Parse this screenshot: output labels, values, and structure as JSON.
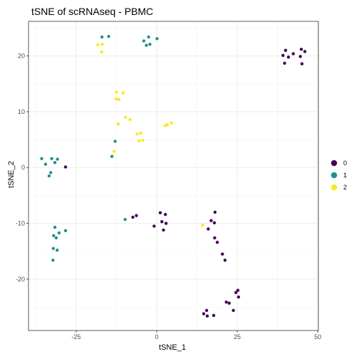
{
  "chart_data": {
    "type": "scatter",
    "title": "tSNE of scRNAseq - PBMC",
    "xlabel": "tSNE_1",
    "ylabel": "tSNE_2",
    "xlim": [
      -39.8,
      50.2
    ],
    "ylim": [
      -29.2,
      26.2
    ],
    "x_ticks": [
      -25,
      0,
      25,
      50
    ],
    "y_ticks": [
      -20,
      -10,
      0,
      10,
      20
    ],
    "x_tick_labels": [
      "-25",
      "0",
      "25",
      "50"
    ],
    "y_tick_labels": [
      "-20",
      "-10",
      "0",
      "10",
      "20"
    ],
    "grid": true,
    "legend_position": "right",
    "legend": [
      {
        "label": "0",
        "color": "#440154"
      },
      {
        "label": "1",
        "color": "#21908C"
      },
      {
        "label": "2",
        "color": "#FDE725"
      }
    ],
    "series": [
      {
        "name": "0",
        "color": "#440154",
        "points": [
          [
            39.2,
            20.1
          ],
          [
            40.0,
            21.0
          ],
          [
            40.9,
            19.8
          ],
          [
            42.4,
            20.4
          ],
          [
            44.6,
            19.9
          ],
          [
            44.9,
            21.2
          ],
          [
            46.0,
            20.8
          ],
          [
            45.1,
            18.6
          ],
          [
            39.7,
            18.7
          ],
          [
            -28.3,
            0.1
          ],
          [
            -7.4,
            -8.9
          ],
          [
            -6.3,
            -8.6
          ],
          [
            1.1,
            -8.1
          ],
          [
            2.7,
            -8.4
          ],
          [
            -0.8,
            -10.5
          ],
          [
            1.6,
            -9.7
          ],
          [
            2.9,
            -10.0
          ],
          [
            2.1,
            -11.2
          ],
          [
            16.9,
            -9.5
          ],
          [
            18.1,
            -8.0
          ],
          [
            16.0,
            -11.0
          ],
          [
            17.9,
            -9.9
          ],
          [
            18.0,
            -12.6
          ],
          [
            18.8,
            -13.4
          ],
          [
            20.4,
            -15.5
          ],
          [
            21.2,
            -16.6
          ],
          [
            24.6,
            -22.4
          ],
          [
            25.2,
            -22.0
          ],
          [
            25.4,
            -23.2
          ],
          [
            21.6,
            -24.1
          ],
          [
            22.5,
            -24.3
          ],
          [
            23.8,
            -25.6
          ],
          [
            15.5,
            -25.6
          ],
          [
            14.6,
            -26.2
          ],
          [
            15.7,
            -26.6
          ],
          [
            17.7,
            -26.5
          ]
        ]
      },
      {
        "name": "1",
        "color": "#21908C",
        "points": [
          [
            -17.0,
            23.4
          ],
          [
            -14.9,
            23.5
          ],
          [
            -4.0,
            22.7
          ],
          [
            -2.5,
            23.4
          ],
          [
            -2.1,
            22.1
          ],
          [
            -3.2,
            21.9
          ],
          [
            0.1,
            23.1
          ],
          [
            -35.7,
            1.6
          ],
          [
            -34.5,
            0.6
          ],
          [
            -32.6,
            1.6
          ],
          [
            -31.6,
            0.9
          ],
          [
            -30.8,
            1.5
          ],
          [
            -32.9,
            -0.9
          ],
          [
            -33.4,
            -1.5
          ],
          [
            -12.9,
            4.7
          ],
          [
            -13.9,
            2.0
          ],
          [
            -9.8,
            -9.3
          ],
          [
            -31.6,
            -10.7
          ],
          [
            -28.3,
            -11.3
          ],
          [
            -30.3,
            -11.7
          ],
          [
            -32.0,
            -12.2
          ],
          [
            -31.2,
            -12.6
          ],
          [
            -32.1,
            -14.5
          ],
          [
            -30.9,
            -14.8
          ],
          [
            -32.2,
            -16.6
          ]
        ]
      },
      {
        "name": "2",
        "color": "#FDE725",
        "points": [
          [
            -18.3,
            22.0
          ],
          [
            -16.9,
            22.1
          ],
          [
            -17.1,
            20.7
          ],
          [
            -12.5,
            13.5
          ],
          [
            -10.4,
            13.4
          ],
          [
            -12.6,
            12.3
          ],
          [
            -11.7,
            12.2
          ],
          [
            -9.7,
            9.0
          ],
          [
            -8.3,
            8.6
          ],
          [
            -11.9,
            7.8
          ],
          [
            -6.1,
            6.0
          ],
          [
            -5.0,
            6.2
          ],
          [
            -5.5,
            4.8
          ],
          [
            -4.3,
            4.9
          ],
          [
            -13.2,
            2.9
          ],
          [
            2.6,
            7.5
          ],
          [
            3.3,
            7.7
          ],
          [
            4.6,
            8.0
          ],
          [
            14.3,
            -10.3
          ]
        ]
      }
    ]
  }
}
